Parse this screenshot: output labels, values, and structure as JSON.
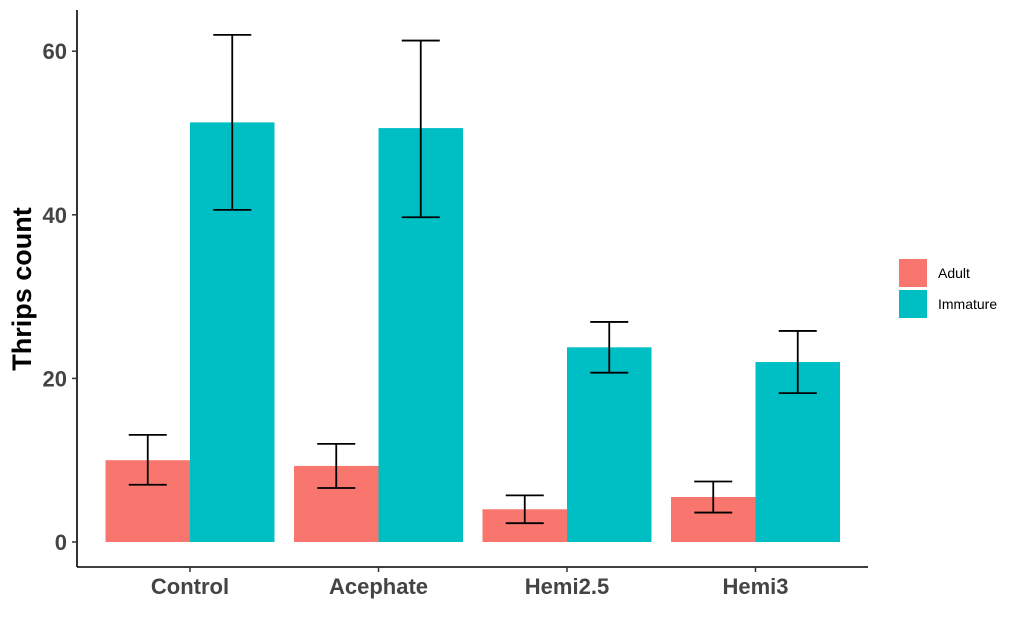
{
  "chart_data": {
    "type": "bar",
    "xlabel": "",
    "ylabel": "Thrips count",
    "ylim": [
      -3,
      65
    ],
    "yticks": [
      0,
      20,
      40,
      60
    ],
    "grid": false,
    "legend_position": "right",
    "categories": [
      "Control",
      "Acephate",
      "Hemi2.5",
      "Hemi3"
    ],
    "series": [
      {
        "name": "Adult",
        "color": "#F8766D",
        "values": [
          10.0,
          9.3,
          4.0,
          5.5
        ],
        "error_low": [
          7.0,
          6.6,
          2.3,
          3.6
        ],
        "error_high": [
          13.1,
          12.0,
          5.7,
          7.4
        ]
      },
      {
        "name": "Immature",
        "color": "#00BFC4",
        "values": [
          51.3,
          50.6,
          23.8,
          22.0
        ],
        "error_low": [
          40.6,
          39.7,
          20.7,
          18.2
        ],
        "error_high": [
          62.0,
          61.3,
          26.9,
          25.8
        ]
      }
    ]
  }
}
